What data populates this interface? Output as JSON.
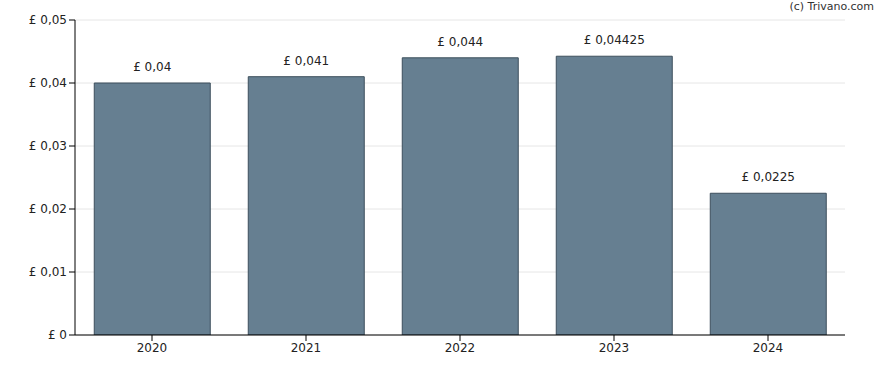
{
  "chart_data": {
    "type": "bar",
    "annotations": [
      "(c) Trivano.com"
    ],
    "categories": [
      "2020",
      "2021",
      "2022",
      "2023",
      "2024"
    ],
    "values": [
      0.04,
      0.041,
      0.044,
      0.04425,
      0.0225
    ],
    "value_labels": [
      "£ 0,04",
      "£ 0,041",
      "£ 0,044",
      "£ 0,04425",
      "£ 0,0225"
    ],
    "data_labels": true,
    "color": "#667f91",
    "ylim": [
      0,
      0.05
    ],
    "yticks": [
      {
        "value": 0,
        "label": "£ 0"
      },
      {
        "value": 0.01,
        "label": "£ 0,01"
      },
      {
        "value": 0.02,
        "label": "£ 0,02"
      },
      {
        "value": 0.03,
        "label": "£ 0,03"
      },
      {
        "value": 0.04,
        "label": "£ 0,04"
      },
      {
        "value": 0.05,
        "label": "£ 0,05"
      }
    ],
    "grid": true
  }
}
